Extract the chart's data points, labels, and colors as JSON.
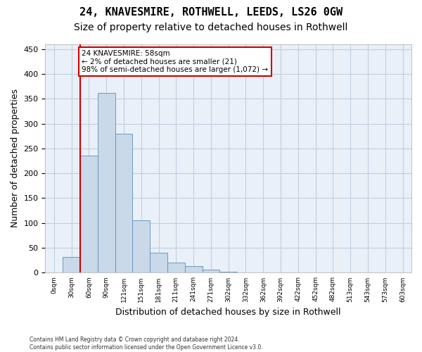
{
  "title_line1": "24, KNAVESMIRE, ROTHWELL, LEEDS, LS26 0GW",
  "title_line2": "Size of property relative to detached houses in Rothwell",
  "xlabel": "Distribution of detached houses by size in Rothwell",
  "ylabel": "Number of detached properties",
  "footer": "Contains HM Land Registry data © Crown copyright and database right 2024.\nContains public sector information licensed under the Open Government Licence v3.0.",
  "bar_values": [
    0,
    32,
    235,
    362,
    280,
    105,
    40,
    20,
    13,
    6,
    2,
    0,
    0,
    0,
    0,
    0,
    0,
    1,
    0,
    0,
    0
  ],
  "bar_labels": [
    "0sqm",
    "30sqm",
    "60sqm",
    "90sqm",
    "121sqm",
    "151sqm",
    "181sqm",
    "211sqm",
    "241sqm",
    "271sqm",
    "302sqm",
    "332sqm",
    "362sqm",
    "392sqm",
    "422sqm",
    "452sqm",
    "482sqm",
    "513sqm",
    "543sqm",
    "573sqm",
    "603sqm"
  ],
  "bar_color": "#c9d9ea",
  "bar_edge_color": "#5b8db8",
  "grid_color": "#c0cfe0",
  "background_color": "#eaf0f8",
  "annotation_text": "24 KNAVESMIRE: 58sqm\n← 2% of detached houses are smaller (21)\n98% of semi-detached houses are larger (1,072) →",
  "annotation_box_color": "#ffffff",
  "annotation_border_color": "#cc0000",
  "vline_x": 1.5,
  "vline_color": "#cc0000",
  "ylim": [
    0,
    460
  ],
  "yticks": [
    0,
    50,
    100,
    150,
    200,
    250,
    300,
    350,
    400,
    450
  ],
  "title_fontsize": 11,
  "subtitle_fontsize": 10,
  "axis_label_fontsize": 9
}
